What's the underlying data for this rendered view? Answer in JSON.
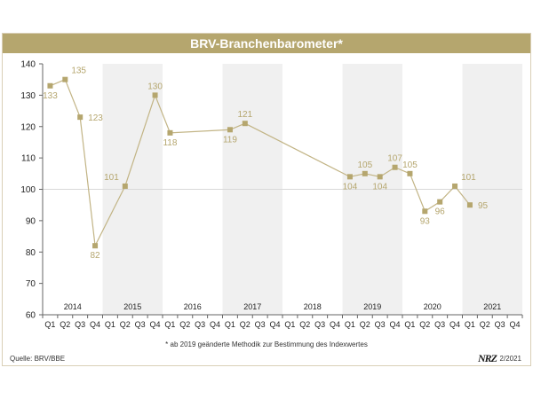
{
  "header": {
    "title": "BRV-Branchenbarometer*"
  },
  "footer": {
    "footnote": "* ab 2019 geänderte Methodik zur Bestimmung des Indexwertes",
    "source": "Quelle: BRV/BBE",
    "logo_text": "NRZ",
    "date": "2/2021"
  },
  "colors": {
    "accent": "#b5a66e",
    "line": "#c2b485",
    "band": "#f0f0f0",
    "reference": "#d9d9d9"
  },
  "chart_data": {
    "type": "line",
    "years": [
      "2014",
      "2015",
      "2016",
      "2017",
      "2018",
      "2019",
      "2020",
      "2021"
    ],
    "quarters": [
      "Q1",
      "Q2",
      "Q3",
      "Q4"
    ],
    "ylim": [
      60,
      140
    ],
    "yticks": [
      60,
      70,
      80,
      90,
      100,
      110,
      120,
      130,
      140
    ],
    "reference_line": 100,
    "series": [
      {
        "values": [
          133,
          135,
          123,
          82,
          101,
          130,
          118,
          119,
          121,
          104,
          105,
          104,
          107,
          105,
          93,
          96,
          101,
          95
        ],
        "points": [
          {
            "year": "2014",
            "quarter": "Q1",
            "value": 133
          },
          {
            "year": "2014",
            "quarter": "Q2",
            "value": 135
          },
          {
            "year": "2014",
            "quarter": "Q3",
            "value": 123
          },
          {
            "year": "2014",
            "quarter": "Q4",
            "value": 82
          },
          {
            "year": "2015",
            "quarter": "Q2",
            "value": 101
          },
          {
            "year": "2015",
            "quarter": "Q4",
            "value": 130
          },
          {
            "year": "2016",
            "quarter": "Q1",
            "value": 118
          },
          {
            "year": "2017",
            "quarter": "Q1",
            "value": 119
          },
          {
            "year": "2017",
            "quarter": "Q2",
            "value": 121
          },
          {
            "year": "2019",
            "quarter": "Q1",
            "value": 104
          },
          {
            "year": "2019",
            "quarter": "Q2",
            "value": 105
          },
          {
            "year": "2019",
            "quarter": "Q3",
            "value": 104
          },
          {
            "year": "2019",
            "quarter": "Q4",
            "value": 107
          },
          {
            "year": "2020",
            "quarter": "Q1",
            "value": 105
          },
          {
            "year": "2020",
            "quarter": "Q2",
            "value": 93
          },
          {
            "year": "2020",
            "quarter": "Q3",
            "value": 96
          },
          {
            "year": "2020",
            "quarter": "Q4",
            "value": 101
          },
          {
            "year": "2021",
            "quarter": "Q1",
            "value": 95
          }
        ]
      }
    ]
  }
}
